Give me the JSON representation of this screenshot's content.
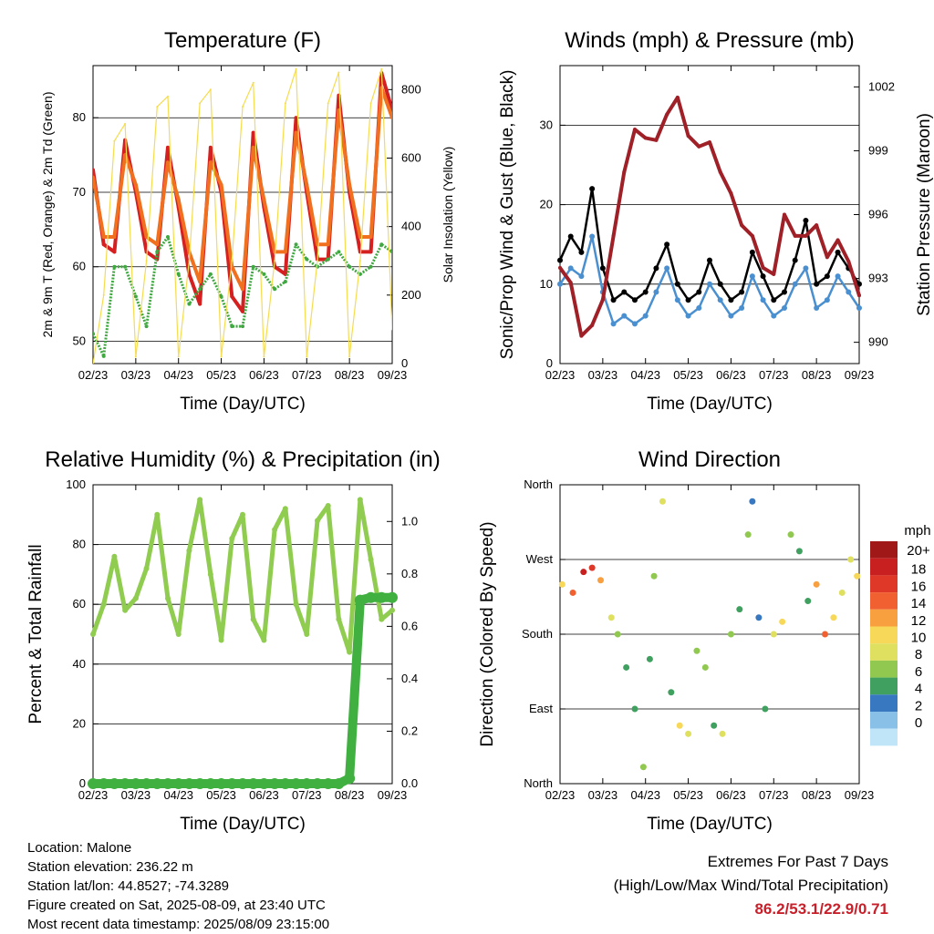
{
  "footer": {
    "location": "Location: Malone",
    "elevation": "Station elevation: 236.22 m",
    "latlon": "Station lat/lon: 44.8527; -74.3289",
    "created": "Figure created on Sat, 2025-08-09, at 23:40 UTC",
    "recent": "Most recent data timestamp: 2025/08/09 23:15:00"
  },
  "extremes": {
    "title": "Extremes For Past 7 Days",
    "subtitle": "(High/Low/Max Wind/Total Precipitation)",
    "values": "86.2/53.1/22.9/0.71",
    "color": "#c8202a"
  },
  "chart_data": [
    {
      "type": "line",
      "title": "Temperature (F)",
      "xlabel": "Time (Day/UTC)",
      "ylabel": "2m & 9m T (Red, Orange) & 2m Td (Green)",
      "ylabel_right": "Solar Insolation (Yellow)",
      "x_ticks": [
        "02/23",
        "03/23",
        "04/23",
        "05/23",
        "06/23",
        "07/23",
        "08/23",
        "09/23"
      ],
      "x": [
        0,
        0.25,
        0.5,
        0.75,
        1,
        1.25,
        1.5,
        1.75,
        2,
        2.25,
        2.5,
        2.75,
        3,
        3.25,
        3.5,
        3.75,
        4,
        4.25,
        4.5,
        4.75,
        5,
        5.25,
        5.5,
        5.75,
        6,
        6.25,
        6.5,
        6.75,
        7
      ],
      "ylim": [
        47,
        87
      ],
      "y_ticks": [
        50,
        60,
        70,
        80
      ],
      "ylim_right": [
        0,
        870
      ],
      "y_ticks_right": [
        0,
        200,
        400,
        600,
        800
      ],
      "grid": true,
      "series": [
        {
          "color": "#d42020",
          "values": [
            73,
            63,
            62,
            77,
            70,
            62,
            61,
            76,
            68,
            59,
            55,
            76,
            70,
            56,
            54,
            78,
            68,
            60,
            59,
            80,
            70,
            61,
            61,
            83,
            70,
            62,
            62,
            86,
            81
          ]
        },
        {
          "color": "#f07020",
          "values": [
            72,
            64,
            64,
            75,
            71,
            64,
            63,
            74,
            69,
            62,
            58,
            74,
            71,
            60,
            57,
            76,
            69,
            62,
            62,
            78,
            71,
            63,
            63,
            81,
            71,
            64,
            64,
            84,
            80
          ]
        },
        {
          "color": "#40a840",
          "values": [
            51,
            48,
            60,
            60,
            56,
            52,
            62,
            64,
            59,
            55,
            57,
            59,
            56,
            52,
            52,
            60,
            59,
            57,
            58,
            63,
            61,
            60,
            61,
            62,
            60,
            59,
            60,
            63,
            62
          ]
        },
        {
          "color": "#f5dc50",
          "values": [
            0,
            200,
            650,
            700,
            20,
            300,
            750,
            780,
            20,
            300,
            760,
            800,
            20,
            300,
            750,
            820,
            20,
            300,
            760,
            860,
            20,
            300,
            760,
            850,
            20,
            300,
            760,
            860,
            100
          ]
        }
      ]
    },
    {
      "type": "line",
      "title": "Winds (mph) & Pressure (mb)",
      "xlabel": "Time (Day/UTC)",
      "ylabel": "Sonic/Prop Wind & Gust (Blue, Black)",
      "ylabel_right": "Station Pressure (Maroon)",
      "x_ticks": [
        "02/23",
        "03/23",
        "04/23",
        "05/23",
        "06/23",
        "07/23",
        "08/23",
        "09/23"
      ],
      "x": [
        0,
        0.25,
        0.5,
        0.75,
        1,
        1.25,
        1.5,
        1.75,
        2,
        2.25,
        2.5,
        2.75,
        3,
        3.25,
        3.5,
        3.75,
        4,
        4.25,
        4.5,
        4.75,
        5,
        5.25,
        5.5,
        5.75,
        6,
        6.25,
        6.5,
        6.75,
        7
      ],
      "ylim": [
        0,
        37.5
      ],
      "y_ticks": [
        0,
        10,
        20,
        30
      ],
      "ylim_right": [
        989,
        1003
      ],
      "y_ticks_right": [
        990,
        993,
        996,
        999,
        1002
      ],
      "grid": true,
      "series": [
        {
          "color": "#4a90d0",
          "values": [
            10,
            12,
            11,
            16,
            9,
            5,
            6,
            5,
            6,
            9,
            12,
            8,
            6,
            7,
            10,
            8,
            6,
            7,
            11,
            8,
            6,
            7,
            10,
            12,
            7,
            8,
            11,
            9,
            7
          ]
        },
        {
          "color": "#000000",
          "values": [
            13,
            16,
            14,
            22,
            12,
            8,
            9,
            8,
            9,
            12,
            15,
            10,
            8,
            9,
            13,
            10,
            8,
            9,
            14,
            11,
            8,
            9,
            13,
            18,
            10,
            11,
            14,
            12,
            10
          ]
        },
        {
          "color": "#a02028",
          "values": [
            993.5,
            992.8,
            990.3,
            990.8,
            992,
            995,
            998,
            1000,
            999.6,
            999.5,
            1000.7,
            1001.5,
            999.7,
            999.2,
            999.4,
            998,
            997,
            995.5,
            995,
            993.5,
            993.2,
            996,
            995,
            995,
            995.5,
            994,
            994.8,
            993.8,
            992.2
          ]
        }
      ]
    },
    {
      "type": "line",
      "title": "Relative Humidity (%) & Precipitation (in)",
      "xlabel": "Time (Day/UTC)",
      "ylabel": "Percent & Total Rainfall",
      "x_ticks": [
        "02/23",
        "03/23",
        "04/23",
        "05/23",
        "06/23",
        "07/23",
        "08/23",
        "09/23"
      ],
      "x": [
        0,
        0.25,
        0.5,
        0.75,
        1,
        1.25,
        1.5,
        1.75,
        2,
        2.25,
        2.5,
        2.75,
        3,
        3.25,
        3.5,
        3.75,
        4,
        4.25,
        4.5,
        4.75,
        5,
        5.25,
        5.5,
        5.75,
        6,
        6.25,
        6.5,
        6.75,
        7
      ],
      "ylim": [
        0,
        100
      ],
      "y_ticks": [
        0,
        20,
        40,
        60,
        80,
        100
      ],
      "ylim_right": [
        0,
        1.14
      ],
      "y_ticks_right": [
        0.0,
        0.2,
        0.4,
        0.6,
        0.8,
        1.0
      ],
      "grid": true,
      "series": [
        {
          "color": "#90cc50",
          "values": [
            50,
            60,
            76,
            58,
            62,
            72,
            90,
            62,
            50,
            78,
            95,
            70,
            48,
            82,
            90,
            55,
            48,
            85,
            92,
            60,
            50,
            88,
            93,
            55,
            44,
            95,
            75,
            55,
            58
          ]
        },
        {
          "color": "#40b040",
          "values": [
            0,
            0,
            0,
            0,
            0,
            0,
            0,
            0,
            0,
            0,
            0,
            0,
            0,
            0,
            0,
            0,
            0,
            0,
            0,
            0,
            0,
            0,
            0,
            0,
            0.02,
            0.7,
            0.71,
            0.71,
            0.71
          ]
        }
      ]
    },
    {
      "type": "scatter",
      "title": "Wind Direction",
      "xlabel": "Time (Day/UTC)",
      "ylabel": "Direction (Colored By Speed)",
      "x_ticks": [
        "02/23",
        "03/23",
        "04/23",
        "05/23",
        "06/23",
        "07/23",
        "08/23",
        "09/23"
      ],
      "y_ticks": [
        "North",
        "East",
        "South",
        "West",
        "North"
      ],
      "ylim": [
        0,
        360
      ],
      "grid": true,
      "x": [
        0.05,
        0.3,
        0.55,
        0.75,
        0.95,
        1.2,
        1.35,
        1.55,
        1.75,
        1.95,
        2.1,
        2.2,
        2.4,
        2.6,
        2.8,
        3.0,
        3.2,
        3.4,
        3.6,
        3.8,
        4.0,
        4.2,
        4.4,
        4.5,
        4.65,
        4.8,
        5.0,
        5.2,
        5.4,
        5.6,
        5.8,
        6.0,
        6.2,
        6.4,
        6.6,
        6.8,
        6.95
      ],
      "y": [
        240,
        230,
        255,
        260,
        245,
        200,
        180,
        140,
        90,
        20,
        150,
        250,
        340,
        110,
        70,
        60,
        160,
        140,
        70,
        60,
        180,
        210,
        300,
        340,
        200,
        90,
        180,
        195,
        300,
        280,
        220,
        240,
        180,
        200,
        230,
        270,
        250
      ],
      "speed": [
        10,
        14,
        18,
        16,
        12,
        8,
        6,
        4,
        5,
        6,
        4,
        6,
        8,
        5,
        10,
        8,
        6,
        7,
        5,
        8,
        6,
        4,
        6,
        3,
        2,
        4,
        8,
        10,
        6,
        4,
        5,
        12,
        14,
        10,
        9,
        8,
        10
      ],
      "colorbar": {
        "title": "mph",
        "labels": [
          "20+",
          "18",
          "16",
          "14",
          "12",
          "10",
          "8",
          "6",
          "4",
          "2",
          "0"
        ],
        "colors": [
          "#a01818",
          "#c82020",
          "#e03828",
          "#f06030",
          "#f8a040",
          "#f8d858",
          "#e0e060",
          "#90c850",
          "#40a060",
          "#3878c0",
          "#88c0e8",
          "#c0e4f8"
        ]
      }
    }
  ]
}
